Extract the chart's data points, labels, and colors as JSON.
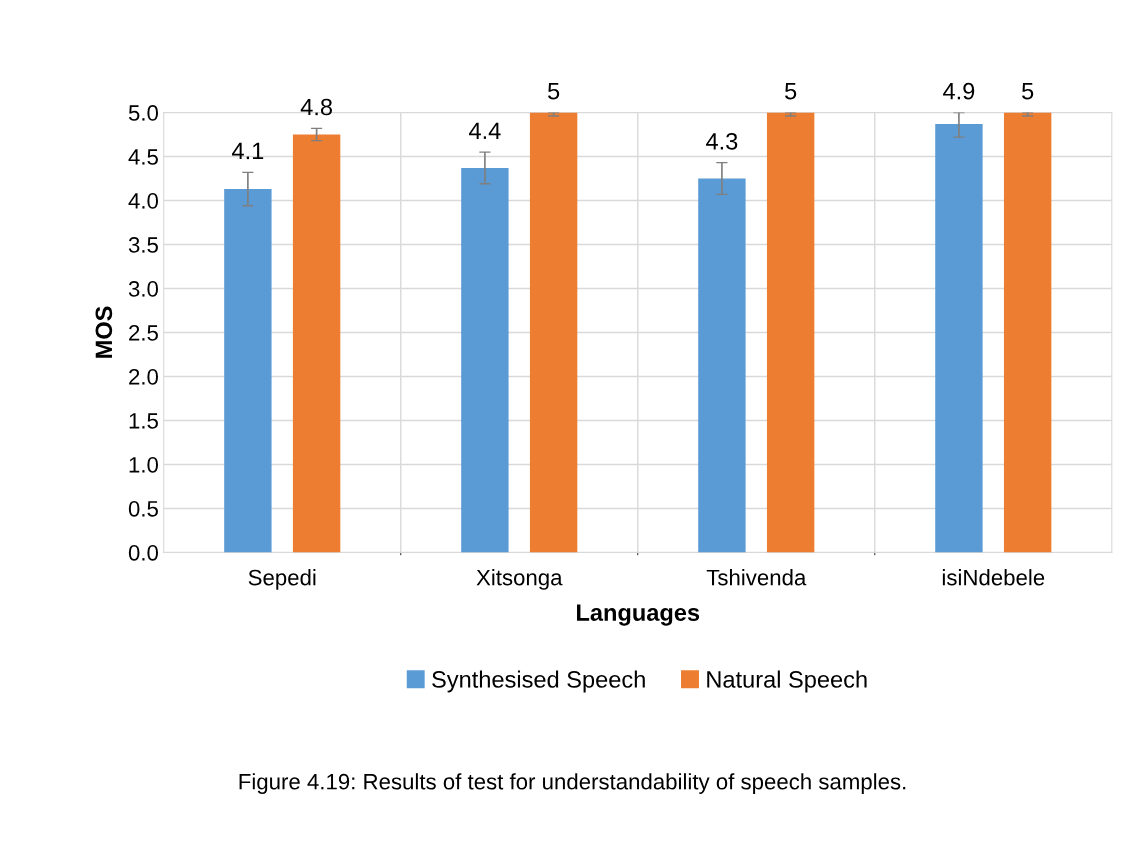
{
  "chart_data": {
    "type": "bar",
    "categories": [
      "Sepedi",
      "Xitsonga",
      "Tshivenda",
      "isiNdebele"
    ],
    "xlabel": "Languages",
    "ylabel": "MOS",
    "series": [
      {
        "name": "Synthesised Speech",
        "color": "#5b9bd5",
        "values": [
          4.13,
          4.37,
          4.25,
          4.87
        ],
        "errors": [
          0.19,
          0.18,
          0.18,
          [
            4.72,
            5
          ]
        ],
        "value_labels": [
          "4.1",
          "4.4",
          "4.3",
          "4.9"
        ]
      },
      {
        "name": "Natural Speech",
        "color": "#ed7d31",
        "values": [
          4.75,
          5,
          5,
          5
        ],
        "errors": [
          0.07,
          [
            4.96,
            5
          ],
          [
            4.96,
            5
          ],
          [
            4.96,
            5
          ]
        ],
        "value_labels": [
          "4.8",
          "5",
          "5",
          "5"
        ]
      }
    ],
    "ylim": [
      0,
      5
    ],
    "yticks": [
      {
        "value": 0,
        "label": "0.0"
      },
      {
        "value": 0.5,
        "label": "0.5"
      },
      {
        "value": 1,
        "label": "1.0"
      },
      {
        "value": 1.5,
        "label": "1.5"
      },
      {
        "value": 2,
        "label": "2.0"
      },
      {
        "value": 2.5,
        "label": "2.5"
      },
      {
        "value": 3,
        "label": "3.0"
      },
      {
        "value": 3.5,
        "label": "3.5"
      },
      {
        "value": 4,
        "label": "4.0"
      },
      {
        "value": 4.5,
        "label": "4.5"
      },
      {
        "value": 5,
        "label": "5.0"
      }
    ],
    "grid": true,
    "legend": "bottom",
    "annotations": [
      "Figure 4.19: Results of test for understandability of speech samples."
    ]
  }
}
